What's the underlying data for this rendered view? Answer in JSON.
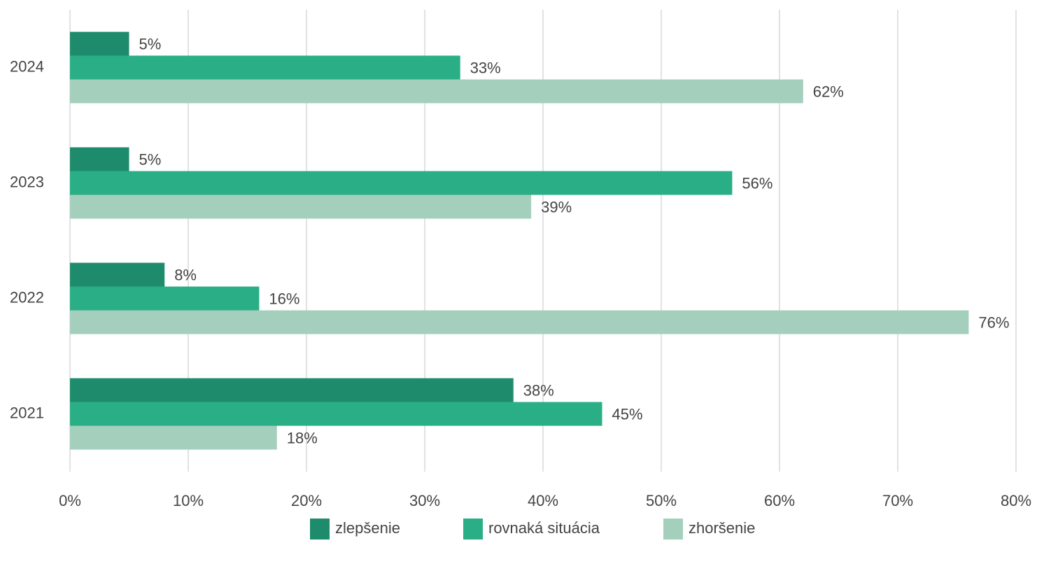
{
  "chart_data": {
    "type": "bar",
    "orientation": "horizontal",
    "categories": [
      "2024",
      "2023",
      "2022",
      "2021"
    ],
    "series": [
      {
        "name": "zlepšenie",
        "color": "#1e8c6c",
        "values": [
          5,
          5,
          8,
          37.5
        ],
        "value_labels": [
          "5%",
          "5%",
          "8%",
          "38%"
        ]
      },
      {
        "name": "rovnaká situácia",
        "color": "#2aae86",
        "values": [
          33,
          56,
          16,
          45
        ],
        "value_labels": [
          "33%",
          "56%",
          "16%",
          "45%"
        ]
      },
      {
        "name": "zhoršenie",
        "color": "#a5cfbd",
        "values": [
          62,
          39,
          76,
          17.5
        ],
        "value_labels": [
          "62%",
          "39%",
          "76%",
          "18%"
        ]
      }
    ],
    "xlim": [
      0,
      80
    ],
    "xticks": [
      {
        "value": 0,
        "label": "0%"
      },
      {
        "value": 10,
        "label": "10%"
      },
      {
        "value": 20,
        "label": "20%"
      },
      {
        "value": 30,
        "label": "30%"
      },
      {
        "value": 40,
        "label": "40%"
      },
      {
        "value": 50,
        "label": "50%"
      },
      {
        "value": 60,
        "label": "60%"
      },
      {
        "value": 70,
        "label": "70%"
      },
      {
        "value": 80,
        "label": "80%"
      }
    ],
    "grid": true,
    "legend": "bottom"
  }
}
